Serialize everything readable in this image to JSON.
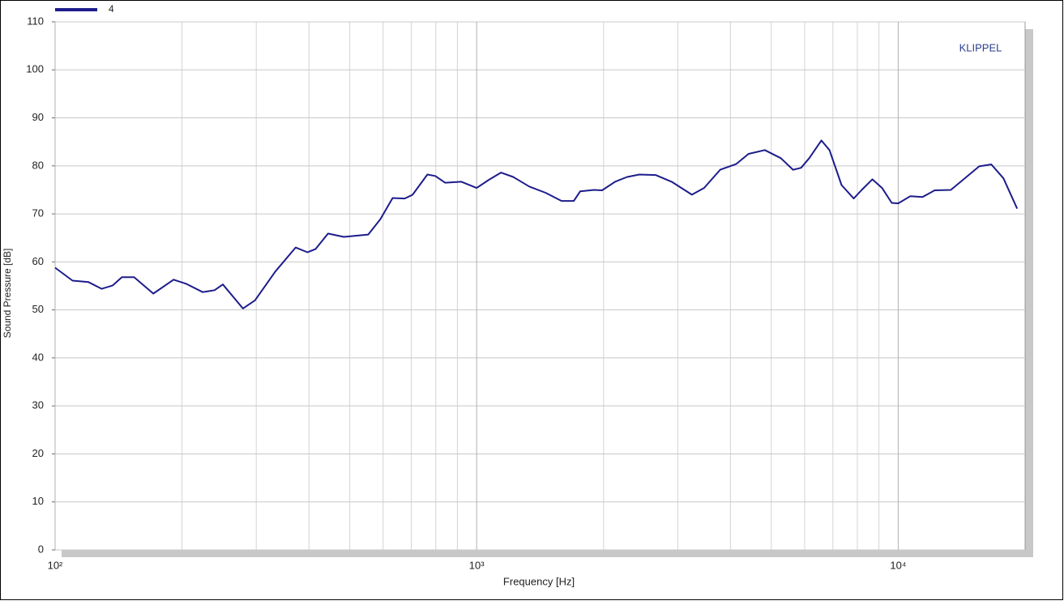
{
  "chart_data": {
    "type": "line",
    "xlabel": "Frequency [Hz]",
    "ylabel": "Sound Pressure [dB]",
    "annotation": "KLIPPEL",
    "xscale": "log",
    "grid": true,
    "legend": "top-left",
    "xlim": [
      100,
      20000
    ],
    "ylim": [
      0,
      110
    ],
    "xticks": [
      {
        "value": 100,
        "label": "10²"
      },
      {
        "value": 1000,
        "label": "10³"
      },
      {
        "value": 10000,
        "label": "10⁴"
      }
    ],
    "xminorticks": [
      200,
      300,
      400,
      500,
      600,
      700,
      800,
      900,
      2000,
      3000,
      4000,
      5000,
      6000,
      7000,
      8000,
      9000
    ],
    "yticks": [
      0,
      10,
      20,
      30,
      40,
      50,
      60,
      70,
      80,
      90,
      100,
      110
    ],
    "x": [
      100,
      110,
      120,
      129,
      137,
      144,
      154,
      171,
      191,
      205,
      224,
      239,
      250,
      279,
      298,
      333,
      372,
      397,
      415,
      444,
      484,
      553,
      591,
      632,
      675,
      705,
      764,
      798,
      842,
      920,
      1000,
      1069,
      1142,
      1221,
      1333,
      1457,
      1590,
      1700,
      1761,
      1898,
      1984,
      2130,
      2275,
      2431,
      2657,
      2901,
      3240,
      3462,
      3781,
      4131,
      4415,
      4825,
      5269,
      5630,
      5885,
      6150,
      6572,
      6869,
      7338,
      7843,
      8195,
      8683,
      9156,
      9652,
      10000,
      10686,
      11418,
      12203,
      13330,
      14246,
      15560,
      16630,
      17770,
      19150
    ],
    "series": [
      {
        "name": "4",
        "color": "#1c1c8c",
        "values": [
          58.8,
          56.1,
          55.8,
          54.4,
          55.1,
          56.8,
          56.8,
          53.4,
          56.3,
          55.4,
          53.7,
          54.1,
          55.3,
          50.3,
          52.0,
          58.0,
          63.0,
          62.0,
          62.7,
          65.9,
          65.2,
          65.7,
          68.9,
          73.3,
          73.2,
          74.0,
          78.2,
          77.9,
          76.5,
          76.7,
          75.4,
          77.1,
          78.6,
          77.7,
          75.7,
          74.4,
          72.7,
          72.7,
          74.7,
          75.0,
          74.9,
          76.7,
          77.7,
          78.2,
          78.1,
          76.7,
          74.0,
          75.4,
          79.2,
          80.4,
          82.5,
          83.3,
          81.6,
          79.2,
          79.6,
          81.6,
          85.3,
          83.3,
          76.0,
          73.2,
          75.0,
          77.2,
          75.4,
          72.3,
          72.2,
          73.7,
          73.5,
          74.9,
          75.0,
          77.1,
          79.9,
          80.3,
          77.4,
          71.1
        ]
      }
    ]
  }
}
